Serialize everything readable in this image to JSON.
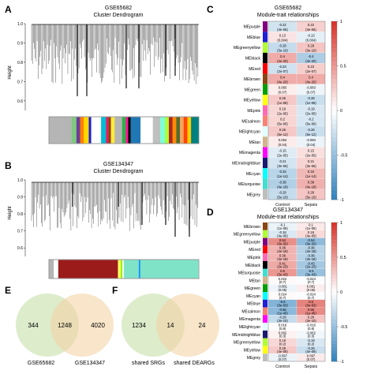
{
  "panels": {
    "A": {
      "letter": "A",
      "title": "GSE65682",
      "subtitle": "Cluster Dendrogram",
      "ylabel": "Height",
      "yticks": [
        "1.0",
        "0.9",
        "0.8",
        "0.7",
        "0.6"
      ],
      "ytick_values": [
        1.0,
        0.9,
        0.8,
        0.7,
        0.6
      ],
      "ylim": [
        0.55,
        1.0
      ],
      "colors": [
        "#b5b5b5",
        "#b5b5b5",
        "#7fc97f",
        "#6a3d9a",
        "#ff7f00",
        "#ffd700",
        "#1f1fd8",
        "#ffffff",
        "#00bcd4",
        "#e91e63",
        "#8b4513",
        "#ffeb3b",
        "#b5b5b5",
        "#2bb34a",
        "#ff1493",
        "#000000",
        "#1f77b4",
        "#ffffff",
        "#c0c0c0",
        "#7fffd4",
        "#adff2f",
        "#b22222",
        "#ff8c00",
        "#556b2f",
        "#f4a460",
        "#ff4500",
        "#ffcc00",
        "#008080"
      ],
      "color_widths": [
        10,
        8,
        4,
        3,
        3,
        4,
        2,
        8,
        4,
        2,
        2,
        3,
        6,
        3,
        2,
        2,
        8,
        10,
        6,
        4,
        3,
        3,
        3,
        3,
        3,
        3,
        3,
        6
      ]
    },
    "B": {
      "letter": "B",
      "title": "GSE134347",
      "subtitle": "Cluster Dendrogram",
      "ylabel": "Height",
      "yticks": [
        "1.0",
        "0.9",
        "0.8",
        "0.7",
        "0.6"
      ],
      "ytick_values": [
        1.0,
        0.9,
        0.8,
        0.7,
        0.6
      ],
      "ylim": [
        0.55,
        1.0
      ],
      "colors": [
        "#b5b5b5",
        "#ffffff",
        "#9b1b1b",
        "#ffff66",
        "#7cfc00",
        "#ffffff",
        "#7fe3c8",
        "#1e90ff",
        "#7fe3c8"
      ],
      "color_widths": [
        3,
        3,
        40,
        2,
        1,
        1,
        10,
        1,
        39
      ]
    },
    "C": {
      "letter": "C",
      "title": "GSE65682",
      "subtitle": "Module-trait relationships",
      "columns": [
        "Control",
        "Sepsis"
      ],
      "legend_ticks": [
        "1",
        "0.5",
        "0",
        "-0.5",
        "-1"
      ],
      "legend_values": [
        1,
        0.5,
        0,
        -0.5,
        -1
      ],
      "rows": [
        {
          "module": "MEpurple",
          "color": "#800080",
          "cells": [
            {
              "r": "-0.22",
              "p": "(4e-06)"
            },
            {
              "r": "0.22",
              "p": "(4e-06)"
            }
          ],
          "values": [
            -0.22,
            0.22
          ]
        },
        {
          "module": "MEblue",
          "color": "#1f1fd8",
          "cells": [
            {
              "r": "0.13",
              "p": "(0.004)"
            },
            {
              "r": "-0.13",
              "p": "(0.004)"
            }
          ],
          "values": [
            0.13,
            -0.13
          ]
        },
        {
          "module": "MEgreenyellow",
          "color": "#adff2f",
          "cells": [
            {
              "r": "-0.28",
              "p": "(3e-10)"
            },
            {
              "r": "0.28",
              "p": "(3e-10)"
            }
          ],
          "values": [
            -0.28,
            0.28
          ]
        },
        {
          "module": "MEblack",
          "color": "#000000",
          "cells": [
            {
              "r": "0.4",
              "p": "(4e-20)"
            },
            {
              "r": "-0.4",
              "p": "(4e-20)"
            }
          ],
          "values": [
            0.4,
            -0.4
          ]
        },
        {
          "module": "MEred",
          "color": "#ff0000",
          "cells": [
            {
              "r": "-0.23",
              "p": "(2e-07)"
            },
            {
              "r": "0.23",
              "p": "(2e-07)"
            }
          ],
          "values": [
            -0.23,
            0.23
          ]
        },
        {
          "module": "MEbrown",
          "color": "#8b4513",
          "cells": [
            {
              "r": "0.4",
              "p": "(4e-20)"
            },
            {
              "r": "0.4",
              "p": "(4e-20)"
            }
          ],
          "values": [
            0.4,
            0.4
          ]
        },
        {
          "module": "MEgreen",
          "color": "#00a000",
          "cells": [
            {
              "r": "0.083",
              "p": "(0.07)"
            },
            {
              "r": "-0.083",
              "p": "(0.07)"
            }
          ],
          "values": [
            0.083,
            -0.083
          ]
        },
        {
          "module": "MEyellow",
          "color": "#ffff00",
          "cells": [
            {
              "r": "0.26",
              "p": "(1e-08)"
            },
            {
              "r": "-0.26",
              "p": "(1e-08)"
            }
          ],
          "values": [
            0.26,
            -0.26
          ]
        },
        {
          "module": "MEpink",
          "color": "#ff69b4",
          "cells": [
            {
              "r": "0.19",
              "p": "(2e-05)"
            },
            {
              "r": "-0.19",
              "p": "(2e-05)"
            }
          ],
          "values": [
            0.19,
            -0.19
          ]
        },
        {
          "module": "MEsalmon",
          "color": "#fa8072",
          "cells": [
            {
              "r": "0.2",
              "p": "(5e-06)"
            },
            {
              "r": "-0.2",
              "p": "(5e-06)"
            }
          ],
          "values": [
            0.2,
            -0.2
          ]
        },
        {
          "module": "MElightcyan",
          "color": "#e0ffff",
          "cells": [
            {
              "r": "0.26",
              "p": "(5e-12)"
            },
            {
              "r": "-0.26",
              "p": "(5e-12)"
            }
          ],
          "values": [
            0.26,
            -0.26
          ]
        },
        {
          "module": "MEtan",
          "color": "#d2b48c",
          "cells": [
            {
              "r": "0.094",
              "p": "(0.04)"
            },
            {
              "r": "-0.094",
              "p": "(0.04)"
            }
          ],
          "values": [
            0.094,
            -0.094
          ]
        },
        {
          "module": "MEmagenta",
          "color": "#ff00ff",
          "cells": [
            {
              "r": "-0.15",
              "p": "(2e-05)"
            },
            {
              "r": "0.15",
              "p": "(2e-05)"
            }
          ],
          "values": [
            -0.15,
            0.15
          ]
        },
        {
          "module": "MEmidnightblue",
          "color": "#191970",
          "cells": [
            {
              "r": "-0.21",
              "p": "(3e-06)"
            },
            {
              "r": "0.21",
              "p": "(3e-06)"
            }
          ],
          "values": [
            -0.21,
            0.21
          ]
        },
        {
          "module": "MEcyan",
          "color": "#00ffff",
          "cells": [
            {
              "r": "-0.34",
              "p": "(1e-14)"
            },
            {
              "r": "0.34",
              "p": "(1e-14)"
            }
          ],
          "values": [
            -0.34,
            0.34
          ]
        },
        {
          "module": "MEturquoise",
          "color": "#40e0d0",
          "cells": [
            {
              "r": "-0.38",
              "p": "(4e-18)"
            },
            {
              "r": "0.38",
              "p": "(4e-18)"
            }
          ],
          "values": [
            -0.38,
            0.38
          ]
        },
        {
          "module": "MEgrey",
          "color": "#bebebe",
          "cells": [
            {
              "r": "-0.28",
              "p": "(5e-10)"
            },
            {
              "r": "0.28",
              "p": "(5e-10)"
            }
          ],
          "values": [
            -0.28,
            0.28
          ]
        }
      ]
    },
    "D": {
      "letter": "D",
      "title": "GSE134347",
      "subtitle": "Module-trait relationships",
      "columns": [
        "Control",
        "Sepsis"
      ],
      "legend_ticks": [
        "1",
        "0.5",
        "0",
        "-0.5",
        "-1"
      ],
      "legend_values": [
        1,
        0.5,
        0,
        -0.5,
        -1
      ],
      "rows": [
        {
          "module": "MEbrown",
          "color": "#8b4513",
          "cells": [
            {
              "r": "-0.1",
              "p": "(1e-08)"
            },
            {
              "r": "0.1",
              "p": "(1e-08)"
            }
          ],
          "values": [
            -0.1,
            0.1
          ]
        },
        {
          "module": "MEgreenyellow",
          "color": "#adff2f",
          "cells": [
            {
              "r": "-0.18",
              "p": "(4e-05)"
            },
            {
              "r": "0.18",
              "p": "(4e-05)"
            }
          ],
          "values": [
            -0.18,
            0.18
          ]
        },
        {
          "module": "MEpurple",
          "color": "#800080",
          "cells": [
            {
              "r": "0.54",
              "p": "(3e-32)"
            },
            {
              "r": "-0.54",
              "p": "(3e-32)"
            }
          ],
          "values": [
            0.54,
            -0.54
          ]
        },
        {
          "module": "MEred",
          "color": "#ff0000",
          "cells": [
            {
              "r": "0.36",
              "p": "(4e-18)"
            },
            {
              "r": "-0.36",
              "p": "(4e-18)"
            }
          ],
          "values": [
            0.36,
            -0.36
          ]
        },
        {
          "module": "MEpink",
          "color": "#ff69b4",
          "cells": [
            {
              "r": "0.36",
              "p": "(3e-18)"
            },
            {
              "r": "-0.36",
              "p": "(3e-18)"
            }
          ],
          "values": [
            0.36,
            -0.36
          ]
        },
        {
          "module": "MEblack",
          "color": "#000000",
          "cells": [
            {
              "r": "0.41",
              "p": "(2e-23)"
            },
            {
              "r": "-0.43",
              "p": "(2e-23)"
            }
          ],
          "values": [
            0.41,
            -0.43
          ]
        },
        {
          "module": "MEturquoise",
          "color": "#40e0d0",
          "cells": [
            {
              "r": "0.5",
              "p": "(3e-43)"
            },
            {
              "r": "-0.5",
              "p": "(3e-43)"
            }
          ],
          "values": [
            0.5,
            -0.5
          ]
        },
        {
          "module": "MEtan",
          "color": "#d2b48c",
          "cells": [
            {
              "r": "0.024",
              "p": "(0.7)"
            },
            {
              "r": "-0.024",
              "p": "(0.7)"
            }
          ],
          "values": [
            0.024,
            -0.024
          ]
        },
        {
          "module": "MEgreen",
          "color": "#00a000",
          "cells": [
            {
              "r": "-0.081",
              "p": "(0.05)"
            },
            {
              "r": "0.081",
              "p": "(0.05)"
            }
          ],
          "values": [
            -0.081,
            0.081
          ]
        },
        {
          "module": "MEcyan",
          "color": "#00ffff",
          "cells": [
            {
              "r": "0.024",
              "p": "(0.7)"
            },
            {
              "r": "-0.024",
              "p": "(0.7)"
            }
          ],
          "values": [
            0.024,
            -0.024
          ]
        },
        {
          "module": "MEblue",
          "color": "#1f1fd8",
          "cells": [
            {
              "r": "-0.6",
              "p": "(3e-53)"
            },
            {
              "r": "0.6",
              "p": "(3e-53)"
            }
          ],
          "values": [
            -0.6,
            0.6
          ]
        },
        {
          "module": "MEsalmon",
          "color": "#fa8072",
          "cells": [
            {
              "r": "-0.56",
              "p": "(1e-45)"
            },
            {
              "r": "0.56",
              "p": "(1e-45)"
            }
          ],
          "values": [
            -0.56,
            0.56
          ]
        },
        {
          "module": "MEmagenta",
          "color": "#ff00ff",
          "cells": [
            {
              "r": "-0.28",
              "p": "(3e-10)"
            },
            {
              "r": "0.28",
              "p": "(3e-10)"
            }
          ],
          "values": [
            -0.28,
            0.28
          ]
        },
        {
          "module": "MElightcyan",
          "color": "#e0ffff",
          "cells": [
            {
              "r": "0.016",
              "p": "(0.8)"
            },
            {
              "r": "-0.016",
              "p": "(0.8)"
            }
          ],
          "values": [
            0.016,
            -0.016
          ]
        },
        {
          "module": "MEmidnightblue",
          "color": "#191970",
          "cells": [
            {
              "r": "0.062",
              "p": "(0.3)"
            },
            {
              "r": "-0.062",
              "p": "(0.3)"
            }
          ],
          "values": [
            0.062,
            -0.062
          ]
        },
        {
          "module": "MEgreenyellow",
          "color": "#adff2f",
          "cells": [
            {
              "r": "0.19",
              "p": "(0.2)"
            },
            {
              "r": "-0.19",
              "p": "(0.2)"
            }
          ],
          "values": [
            0.19,
            -0.19
          ]
        },
        {
          "module": "MEyellow",
          "color": "#ffff00",
          "cells": [
            {
              "r": "0.26",
              "p": "(4e-08)"
            },
            {
              "r": "-0.26",
              "p": "(4e-08)"
            }
          ],
          "values": [
            0.26,
            -0.26
          ]
        },
        {
          "module": "MEgrey",
          "color": "#bebebe",
          "cells": [
            {
              "r": "-0.097",
              "p": "(0.07)"
            },
            {
              "r": "0.097",
              "p": "(0.07)"
            }
          ],
          "values": [
            -0.097,
            0.097
          ]
        }
      ]
    },
    "E": {
      "letter": "E",
      "left_count": "344",
      "overlap_count": "1248",
      "right_count": "4020",
      "left_label": "GSE65682",
      "right_label": "GSE134347",
      "left_color": "#c6e0a8",
      "right_color": "#f3d3a6"
    },
    "F": {
      "letter": "F",
      "left_count": "1234",
      "overlap_count": "14",
      "right_count": "24",
      "left_label": "shared SRGs",
      "right_label": "shared DEARGs",
      "left_color": "#c6e0a8",
      "right_color": "#f3d3a6"
    }
  }
}
